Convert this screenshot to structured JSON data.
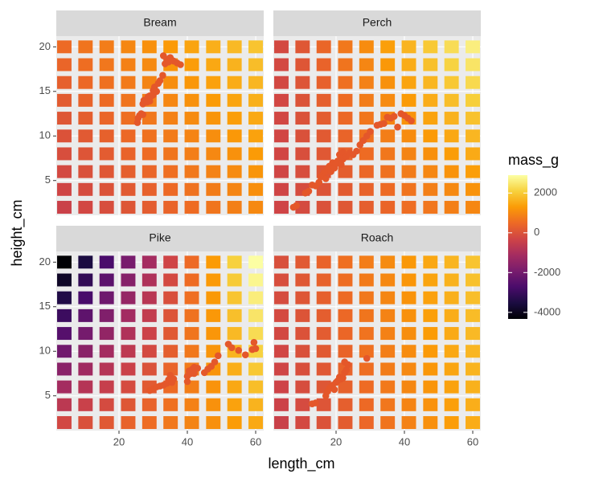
{
  "chart_data": {
    "type": "tile",
    "x_label": "length_cm",
    "y_label": "height_cm",
    "legend_title": "mass_g",
    "xlim": [
      1.65,
      62.35
    ],
    "ylim": [
      1.1,
      21.2
    ],
    "xticks": [
      20,
      40,
      60
    ],
    "yticks": [
      5,
      10,
      15,
      20
    ],
    "grid": true,
    "grid_x": [
      4,
      10.2,
      16.4,
      22.7,
      28.9,
      35.1,
      41.3,
      47.6,
      53.8,
      60
    ],
    "grid_y": [
      2,
      4,
      6,
      8,
      10,
      12,
      14,
      16,
      18,
      20
    ],
    "colors": [
      "#000004",
      "#1b0c41",
      "#4a0c6b",
      "#781c6d",
      "#a52c60",
      "#cf4446",
      "#ed6925",
      "#fb9b06",
      "#f7d13d",
      "#fcffa4"
    ],
    "colorlim": [
      -4330,
      2900
    ],
    "colorticks": [
      -4000,
      -2000,
      0,
      2000
    ],
    "point_color": "#e4572a",
    "facets": [
      {
        "name": "Bream",
        "values": [
          [
            -400,
            -240,
            -90,
            70,
            220,
            380,
            530,
            690,
            840,
            1000
          ],
          [
            -300,
            -140,
            10,
            170,
            320,
            480,
            630,
            790,
            940,
            1100
          ],
          [
            -200,
            -40,
            110,
            270,
            420,
            580,
            730,
            890,
            1040,
            1200
          ],
          [
            -100,
            60,
            210,
            370,
            520,
            680,
            830,
            990,
            1140,
            1300
          ],
          [
            0,
            160,
            310,
            470,
            620,
            780,
            930,
            1090,
            1240,
            1400
          ],
          [
            100,
            260,
            410,
            570,
            720,
            880,
            1030,
            1190,
            1340,
            1500
          ],
          [
            200,
            360,
            510,
            670,
            820,
            980,
            1130,
            1290,
            1440,
            1600
          ],
          [
            300,
            460,
            610,
            770,
            920,
            1080,
            1230,
            1390,
            1540,
            1700
          ],
          [
            400,
            560,
            710,
            870,
            1020,
            1180,
            1330,
            1490,
            1640,
            1800
          ],
          [
            500,
            660,
            810,
            970,
            1120,
            1280,
            1430,
            1590,
            1740,
            1900
          ]
        ],
        "points": {
          "x": [
            25.4,
            25.6,
            26,
            26.5,
            27,
            27,
            27.3,
            28,
            28.2,
            28.5,
            29,
            29,
            29.5,
            30,
            30,
            30.4,
            31,
            31.5,
            32,
            32.8,
            33,
            33.5,
            34,
            34.5,
            35,
            35.5,
            36,
            37,
            38
          ],
          "y": [
            11.5,
            12,
            12.3,
            12.5,
            12.4,
            13.6,
            14,
            14,
            13.8,
            14.4,
            14.5,
            13.9,
            14.5,
            15.1,
            14.6,
            15.5,
            15,
            15.9,
            16.2,
            16.8,
            19,
            18.1,
            18.6,
            18.3,
            18.8,
            18.5,
            18.4,
            18.2,
            18
          ]
        }
      },
      {
        "name": "Perch",
        "values": [
          [
            -310,
            -170,
            -20,
            120,
            270,
            410,
            550,
            700,
            840,
            980
          ],
          [
            -300,
            -140,
            30,
            190,
            350,
            510,
            670,
            840,
            1000,
            1160
          ],
          [
            -280,
            -100,
            80,
            260,
            440,
            620,
            800,
            980,
            1160,
            1340
          ],
          [
            -270,
            -70,
            130,
            330,
            530,
            720,
            920,
            1120,
            1320,
            1520
          ],
          [
            -260,
            -40,
            170,
            390,
            610,
            830,
            1050,
            1270,
            1480,
            1700
          ],
          [
            -250,
            -10,
            220,
            460,
            700,
            930,
            1170,
            1410,
            1640,
            1880
          ],
          [
            -240,
            20,
            270,
            530,
            790,
            1040,
            1290,
            1550,
            1810,
            2060
          ],
          [
            -220,
            50,
            320,
            600,
            870,
            1140,
            1420,
            1690,
            1970,
            2240
          ],
          [
            -210,
            80,
            370,
            670,
            960,
            1250,
            1540,
            1840,
            2130,
            2420
          ],
          [
            -200,
            110,
            420,
            730,
            1050,
            1350,
            1670,
            1980,
            2290,
            2600
          ]
        ],
        "points": {
          "x": [
            7.5,
            8.4,
            11,
            12,
            13,
            14,
            15,
            15.5,
            16,
            16.5,
            17,
            17,
            17.5,
            18,
            18.5,
            19,
            19.5,
            20,
            20.5,
            21,
            21.5,
            22,
            22,
            23,
            24,
            25,
            26,
            27,
            28,
            29,
            30,
            32,
            33,
            34,
            35,
            36,
            37,
            38,
            39,
            40,
            41,
            42
          ],
          "y": [
            2,
            2.2,
            3.6,
            3.8,
            4.5,
            4.4,
            4.8,
            5.4,
            5.6,
            5.9,
            6,
            5.2,
            6.3,
            6.6,
            6,
            7,
            6.4,
            6.9,
            7.2,
            7.9,
            6.8,
            8.2,
            7.4,
            7.7,
            8.1,
            7.9,
            8.3,
            9,
            9.5,
            10,
            10.5,
            11.2,
            11.3,
            11.4,
            12.1,
            12,
            12.2,
            11,
            12.5,
            12.3,
            12,
            11.7
          ]
        }
      },
      {
        "name": "Pike",
        "values": [
          [
            -230,
            -40,
            150,
            350,
            540,
            730,
            920,
            1120,
            1310,
            1500
          ],
          [
            -690,
            -430,
            -170,
            100,
            350,
            610,
            870,
            1140,
            1400,
            1650
          ],
          [
            -1140,
            -810,
            -490,
            -160,
            170,
            500,
            820,
            1160,
            1480,
            1810
          ],
          [
            -1600,
            -1200,
            -810,
            -410,
            -10,
            380,
            780,
            1180,
            1570,
            1960
          ],
          [
            -2050,
            -1590,
            -1130,
            -660,
            -200,
            260,
            730,
            1200,
            1660,
            2120
          ],
          [
            -2510,
            -1980,
            -1450,
            -910,
            -380,
            150,
            680,
            1220,
            1740,
            2270
          ],
          [
            -2960,
            -2370,
            -1770,
            -1160,
            -570,
            30,
            630,
            1240,
            1830,
            2430
          ],
          [
            -3420,
            -2750,
            -2090,
            -1410,
            -750,
            -80,
            580,
            1260,
            1920,
            2580
          ],
          [
            -3870,
            -3140,
            -2410,
            -1670,
            -930,
            -200,
            530,
            1270,
            2010,
            2740
          ],
          [
            -4330,
            -3530,
            -2730,
            -1920,
            -1120,
            -320,
            480,
            1290,
            2090,
            2890
          ]
        ],
        "points": {
          "x": [
            29,
            30,
            31,
            32,
            33,
            34,
            34.5,
            35,
            35.5,
            36,
            40,
            40,
            40.5,
            41,
            41.5,
            42,
            42,
            43,
            45,
            46,
            47,
            48,
            49,
            52,
            53,
            55,
            57,
            59,
            59.5,
            60
          ],
          "y": [
            5.6,
            5.8,
            6,
            6.1,
            6.2,
            6.4,
            6.8,
            7.3,
            6.5,
            6.9,
            6.6,
            7.2,
            7.8,
            7.5,
            8,
            8.2,
            7.5,
            8.1,
            7.6,
            8,
            8.3,
            8.8,
            9.5,
            10.8,
            10.4,
            10.1,
            9.6,
            10.2,
            11,
            10.3
          ]
        }
      },
      {
        "name": "Roach",
        "values": [
          [
            -420,
            -200,
            10,
            230,
            450,
            670,
            890,
            1110,
            1320,
            1540
          ],
          [
            -380,
            -160,
            50,
            270,
            490,
            710,
            930,
            1150,
            1360,
            1580
          ],
          [
            -340,
            -120,
            90,
            310,
            530,
            750,
            970,
            1190,
            1400,
            1620
          ],
          [
            -300,
            -80,
            130,
            350,
            570,
            790,
            1010,
            1230,
            1440,
            1660
          ],
          [
            -260,
            -40,
            170,
            390,
            610,
            830,
            1050,
            1270,
            1480,
            1700
          ],
          [
            -220,
            0,
            210,
            430,
            650,
            870,
            1090,
            1310,
            1520,
            1740
          ],
          [
            -180,
            40,
            250,
            470,
            690,
            910,
            1130,
            1350,
            1560,
            1780
          ],
          [
            -140,
            80,
            290,
            510,
            730,
            950,
            1170,
            1390,
            1600,
            1820
          ],
          [
            -100,
            120,
            330,
            550,
            770,
            990,
            1210,
            1430,
            1640,
            1860
          ],
          [
            -60,
            160,
            370,
            590,
            810,
            1030,
            1250,
            1470,
            1680,
            1900
          ]
        ],
        "points": {
          "x": [
            13,
            14,
            17,
            17.5,
            18,
            18.5,
            19,
            19.5,
            20,
            20.5,
            21,
            21.5,
            22,
            22.5,
            22.5,
            23,
            23.5,
            29
          ],
          "y": [
            4.1,
            4.2,
            5,
            5.5,
            5.8,
            6,
            6.2,
            5.7,
            6.5,
            6.7,
            7.1,
            6.9,
            7,
            7.6,
            8.8,
            7.9,
            8.5,
            9.2
          ]
        }
      }
    ]
  }
}
